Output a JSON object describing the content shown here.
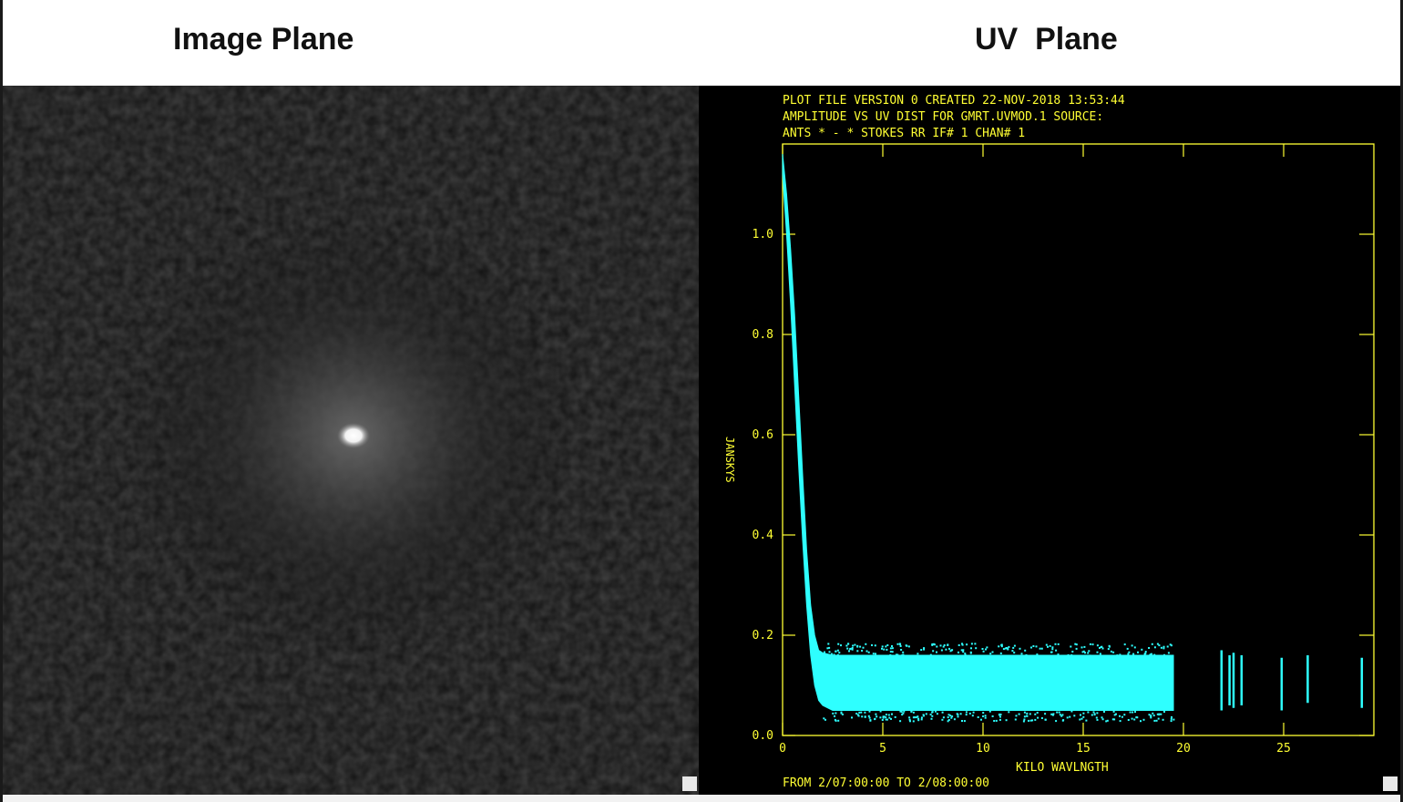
{
  "headings": {
    "left": "Image Plane",
    "right": "UV  Plane"
  },
  "uv_plot": {
    "header_line1": "PLOT FILE VERSION 0  CREATED 22-NOV-2018 13:53:44",
    "header_line2": "AMPLITUDE VS UV DIST FOR GMRT.UVMOD.1    SOURCE:",
    "header_line3": "ANTS * - *     STOKES RR   IF# 1  CHAN# 1",
    "footer": "FROM   2/07:00:00   TO   2/08:00:00",
    "text_color": "#ffff33",
    "data_color": "#2effff"
  },
  "chart_data": {
    "type": "scatter",
    "title": "",
    "xlabel": "KILO WAVLNGTH",
    "ylabel": "JANSKYS",
    "xlim": [
      0,
      29.5
    ],
    "ylim": [
      0.0,
      1.18
    ],
    "x_ticks": [
      0,
      5,
      10,
      15,
      20,
      25
    ],
    "y_ticks": [
      0.0,
      0.2,
      0.4,
      0.6,
      0.8,
      1.0
    ],
    "x_tick_labels": [
      "0",
      "5",
      "10",
      "15",
      "20",
      "25"
    ],
    "y_tick_labels": [
      "0.0",
      "0.2",
      "0.4",
      "0.6",
      "0.8",
      "1.0"
    ],
    "grid": false,
    "envelope": {
      "x": [
        0.0,
        0.2,
        0.4,
        0.6,
        0.8,
        1.0,
        1.2,
        1.4,
        1.6,
        1.8,
        2.0,
        2.5,
        3,
        5,
        8,
        10,
        12,
        15,
        17,
        18,
        19.5
      ],
      "upper": [
        1.16,
        1.08,
        0.97,
        0.84,
        0.68,
        0.52,
        0.37,
        0.26,
        0.2,
        0.17,
        0.165,
        0.16,
        0.16,
        0.16,
        0.16,
        0.16,
        0.16,
        0.16,
        0.16,
        0.16,
        0.16
      ],
      "lower": [
        1.12,
        1.0,
        0.86,
        0.7,
        0.54,
        0.39,
        0.26,
        0.16,
        0.1,
        0.07,
        0.06,
        0.05,
        0.05,
        0.05,
        0.05,
        0.05,
        0.05,
        0.05,
        0.05,
        0.05,
        0.05
      ]
    },
    "isolated_baselines": {
      "x": [
        21.9,
        22.3,
        22.5,
        22.9,
        24.9,
        26.2,
        28.9
      ],
      "upper": [
        0.17,
        0.16,
        0.165,
        0.16,
        0.155,
        0.16,
        0.155
      ],
      "lower": [
        0.05,
        0.06,
        0.055,
        0.06,
        0.05,
        0.065,
        0.055
      ]
    }
  },
  "image_plane": {
    "source": "bright compact source with diffuse halo on noisy background"
  }
}
